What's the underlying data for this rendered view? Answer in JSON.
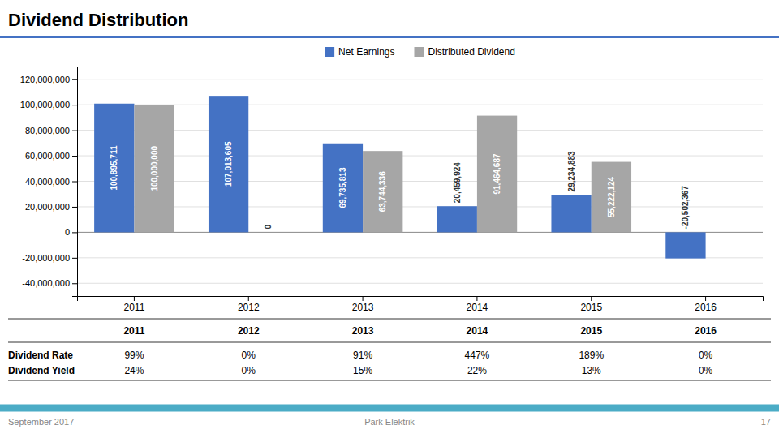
{
  "chart_data": {
    "type": "bar",
    "title": "Dividend Distribution",
    "categories": [
      "2011",
      "2012",
      "2013",
      "2014",
      "2015",
      "2016"
    ],
    "series": [
      {
        "name": "Net Earnings",
        "color": "#4472C4",
        "values": [
          100895711,
          107013605,
          69735813,
          20459924,
          29234883,
          -20502367
        ],
        "value_labels": [
          "100,895,711",
          "107,013,605",
          "69,735,813",
          "20,459,924",
          "29,234,883",
          "-20,502,367"
        ]
      },
      {
        "name": "Distributed Dividend",
        "color": "#A6A6A6",
        "values": [
          100000000,
          0,
          63744336,
          91464687,
          55222124,
          0
        ],
        "value_labels": [
          "100,000,000",
          "0",
          "63,744,336",
          "91,464,687",
          "55,222,124",
          null
        ]
      }
    ],
    "ylim": [
      -50000000,
      130000000
    ],
    "yticks": [
      {
        "value": -40000000,
        "label": "-40,000,000"
      },
      {
        "value": -20000000,
        "label": "-20,000,000"
      },
      0,
      {
        "value": 20000000,
        "label": "20,000,000"
      },
      {
        "value": 40000000,
        "label": "40,000,000"
      },
      {
        "value": 60000000,
        "label": "60,000,000"
      },
      {
        "value": 80000000,
        "label": "80,000,000"
      },
      {
        "value": 100000000,
        "label": "100,000,000"
      },
      {
        "value": 120000000,
        "label": "120,000,000"
      }
    ],
    "grid": true,
    "legend": "top",
    "data_labels": true,
    "table": {
      "rows": [
        {
          "name": "Dividend Rate",
          "values": [
            99,
            0,
            91,
            447,
            189,
            0
          ],
          "value_labels": [
            "99%",
            "0%",
            "91%",
            "447%",
            "189%",
            "0%"
          ]
        },
        {
          "name": "Dividend Yield",
          "values": [
            24,
            0,
            15,
            22,
            13,
            0
          ],
          "value_labels": [
            "24%",
            "0%",
            "15%",
            "22%",
            "13%",
            "0%"
          ]
        }
      ]
    },
    "annotations": [
      "September 2017",
      "Park Elektrik",
      "17"
    ]
  }
}
